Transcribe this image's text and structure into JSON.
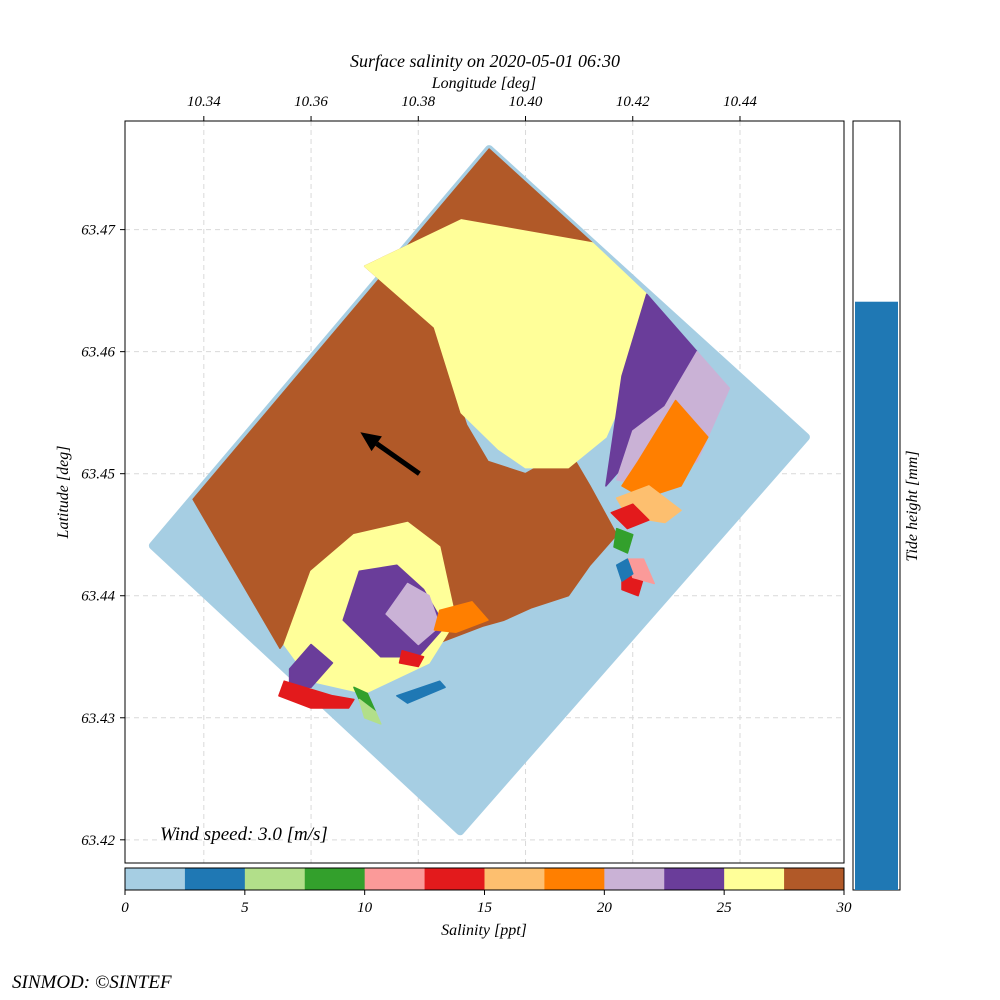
{
  "chart_data": {
    "type": "heatmap",
    "title": "Surface salinity on 2020-05-01 06:30",
    "x_axis": {
      "label": "Longitude [deg]",
      "position": "top",
      "range": [
        10.3253,
        10.4594
      ],
      "ticks": [
        10.34,
        10.36,
        10.38,
        10.4,
        10.42,
        10.44
      ],
      "tick_labels": [
        "10.34",
        "10.36",
        "10.38",
        "10.40",
        "10.42",
        "10.44"
      ]
    },
    "y_axis": {
      "label": "Latitude [deg]",
      "range": [
        63.4181,
        63.4789
      ],
      "ticks": [
        63.42,
        63.43,
        63.44,
        63.45,
        63.46,
        63.47
      ],
      "tick_labels": [
        "63.42",
        "63.43",
        "63.44",
        "63.45",
        "63.46",
        "63.47"
      ]
    },
    "grid": true,
    "domain_corners": [
      {
        "lon": 10.3305,
        "lat": 63.4441
      },
      {
        "lon": 10.3932,
        "lat": 63.4766
      },
      {
        "lon": 10.4523,
        "lat": 63.453
      },
      {
        "lon": 10.3878,
        "lat": 63.4207
      }
    ],
    "salinity_regions": [
      {
        "salinity": 29,
        "polygon": [
          [
            10.338,
            63.4479
          ],
          [
            10.3932,
            63.4766
          ],
          [
            10.4125,
            63.4689
          ],
          [
            10.388,
            63.4708
          ],
          [
            10.37,
            63.467
          ],
          [
            10.383,
            63.462
          ],
          [
            10.389,
            63.454
          ],
          [
            10.393,
            63.451
          ],
          [
            10.4,
            63.45
          ],
          [
            10.408,
            63.452
          ],
          [
            10.412,
            63.449
          ],
          [
            10.417,
            63.445
          ],
          [
            10.412,
            63.4425
          ],
          [
            10.408,
            63.44
          ],
          [
            10.401,
            63.439
          ],
          [
            10.396,
            63.438
          ],
          [
            10.392,
            63.4375
          ],
          [
            10.38,
            63.4355
          ],
          [
            10.363,
            63.439
          ],
          [
            10.357,
            63.4375
          ],
          [
            10.3542,
            63.4357
          ]
        ]
      },
      {
        "salinity": 26,
        "polygon": [
          [
            10.37,
            63.467
          ],
          [
            10.388,
            63.4708
          ],
          [
            10.4125,
            63.4689
          ],
          [
            10.4226,
            63.4647
          ],
          [
            10.42,
            63.458
          ],
          [
            10.415,
            63.453
          ],
          [
            10.408,
            63.4505
          ],
          [
            10.4,
            63.4505
          ],
          [
            10.395,
            63.452
          ],
          [
            10.388,
            63.455
          ],
          [
            10.383,
            63.462
          ]
        ]
      },
      {
        "salinity": 26,
        "polygon": [
          [
            10.355,
            63.436
          ],
          [
            10.36,
            63.442
          ],
          [
            10.368,
            63.445
          ],
          [
            10.378,
            63.446
          ],
          [
            10.384,
            63.444
          ],
          [
            10.387,
            63.438
          ],
          [
            10.382,
            63.4345
          ],
          [
            10.37,
            63.432
          ],
          [
            10.36,
            63.433
          ]
        ]
      },
      {
        "salinity": 24,
        "polygon": [
          [
            10.4226,
            63.4647
          ],
          [
            10.432,
            63.46
          ],
          [
            10.426,
            63.455
          ],
          [
            10.419,
            63.451
          ],
          [
            10.415,
            63.449
          ],
          [
            10.418,
            63.458
          ]
        ]
      },
      {
        "salinity": 24,
        "polygon": [
          [
            10.366,
            63.438
          ],
          [
            10.369,
            63.442
          ],
          [
            10.376,
            63.4425
          ],
          [
            10.381,
            63.4405
          ],
          [
            10.385,
            63.4375
          ],
          [
            10.38,
            63.435
          ],
          [
            10.373,
            63.435
          ]
        ]
      },
      {
        "salinity": 24,
        "polygon": [
          [
            10.356,
            63.434
          ],
          [
            10.36,
            63.436
          ],
          [
            10.364,
            63.4345
          ],
          [
            10.36,
            63.4325
          ],
          [
            10.356,
            63.4325
          ]
        ]
      },
      {
        "salinity": 21,
        "polygon": [
          [
            10.432,
            63.46
          ],
          [
            10.438,
            63.457
          ],
          [
            10.432,
            63.451
          ],
          [
            10.423,
            63.449
          ],
          [
            10.417,
            63.4495
          ],
          [
            10.42,
            63.4535
          ],
          [
            10.426,
            63.4555
          ]
        ]
      },
      {
        "salinity": 21,
        "polygon": [
          [
            10.374,
            63.4385
          ],
          [
            10.378,
            63.441
          ],
          [
            10.382,
            63.44
          ],
          [
            10.384,
            63.4375
          ],
          [
            10.38,
            63.436
          ]
        ]
      },
      {
        "salinity": 18,
        "polygon": [
          [
            10.428,
            63.456
          ],
          [
            10.434,
            63.453
          ],
          [
            10.429,
            63.449
          ],
          [
            10.422,
            63.448
          ],
          [
            10.418,
            63.449
          ],
          [
            10.421,
            63.451
          ]
        ]
      },
      {
        "salinity": 18,
        "polygon": [
          [
            10.384,
            63.4388
          ],
          [
            10.39,
            63.4395
          ],
          [
            10.393,
            63.438
          ],
          [
            10.387,
            63.437
          ],
          [
            10.383,
            63.4372
          ]
        ]
      },
      {
        "salinity": 16,
        "polygon": [
          [
            10.417,
            63.448
          ],
          [
            10.423,
            63.449
          ],
          [
            10.429,
            63.447
          ],
          [
            10.426,
            63.446
          ],
          [
            10.419,
            63.4465
          ]
        ]
      },
      {
        "salinity": 14,
        "polygon": [
          [
            10.416,
            63.4468
          ],
          [
            10.42,
            63.4475
          ],
          [
            10.423,
            63.4462
          ],
          [
            10.419,
            63.4455
          ]
        ]
      },
      {
        "salinity": 14,
        "polygon": [
          [
            10.355,
            63.433
          ],
          [
            10.364,
            63.4318
          ],
          [
            10.368,
            63.4315
          ],
          [
            10.367,
            63.4308
          ],
          [
            10.36,
            63.4308
          ],
          [
            10.354,
            63.4318
          ]
        ]
      },
      {
        "salinity": 14,
        "polygon": [
          [
            10.377,
            63.4355
          ],
          [
            10.381,
            63.435
          ],
          [
            10.38,
            63.4342
          ],
          [
            10.3765,
            63.4345
          ]
        ]
      },
      {
        "salinity": 14,
        "polygon": [
          [
            10.418,
            63.442
          ],
          [
            10.422,
            63.4415
          ],
          [
            10.421,
            63.44
          ],
          [
            10.418,
            63.4405
          ]
        ]
      },
      {
        "salinity": 11,
        "polygon": [
          [
            10.419,
            63.443
          ],
          [
            10.422,
            63.443
          ],
          [
            10.424,
            63.441
          ],
          [
            10.42,
            63.4415
          ]
        ]
      },
      {
        "salinity": 9,
        "polygon": [
          [
            10.368,
            63.4325
          ],
          [
            10.3705,
            63.432
          ],
          [
            10.372,
            63.4305
          ],
          [
            10.37,
            63.4305
          ]
        ]
      },
      {
        "salinity": 9,
        "polygon": [
          [
            10.417,
            63.4455
          ],
          [
            10.42,
            63.445
          ],
          [
            10.419,
            63.4435
          ],
          [
            10.4165,
            63.444
          ]
        ]
      },
      {
        "salinity": 6,
        "polygon": [
          [
            10.369,
            63.4315
          ],
          [
            10.372,
            63.4305
          ],
          [
            10.373,
            63.4295
          ],
          [
            10.37,
            63.43
          ]
        ]
      },
      {
        "salinity": 4,
        "polygon": [
          [
            10.376,
            63.4318
          ],
          [
            10.384,
            63.433
          ],
          [
            10.385,
            63.4325
          ],
          [
            10.378,
            63.4312
          ]
        ]
      },
      {
        "salinity": 4,
        "polygon": [
          [
            10.417,
            63.4425
          ],
          [
            10.419,
            63.443
          ],
          [
            10.42,
            63.4418
          ],
          [
            10.418,
            63.4412
          ]
        ]
      }
    ],
    "colorbar": {
      "label": "Salinity [ppt]",
      "range": [
        0,
        30
      ],
      "ticks": [
        0,
        5,
        10,
        15,
        20,
        25,
        30
      ],
      "tick_labels": [
        "0",
        "5",
        "10",
        "15",
        "20",
        "25",
        "30"
      ],
      "colors": [
        "#a6cee3",
        "#1f78b4",
        "#b2df8a",
        "#33a02c",
        "#fb9a99",
        "#e31a1c",
        "#fdbf6f",
        "#ff7f00",
        "#cab2d6",
        "#6a3d9a",
        "#ffff99",
        "#b15928"
      ]
    },
    "wind": {
      "label": "Wind speed: 3.0 [m/s]",
      "speed": 3.0,
      "arrow_origin": {
        "lon": 10.3802,
        "lat": 63.45
      },
      "arrow_tip": {
        "lon": 10.3692,
        "lat": 63.4534
      }
    },
    "tide": {
      "label": "Tide height [mm]",
      "fill_fraction": 0.765,
      "color": "#1f78b4"
    }
  },
  "credit": "SINMOD: ©SINTEF"
}
